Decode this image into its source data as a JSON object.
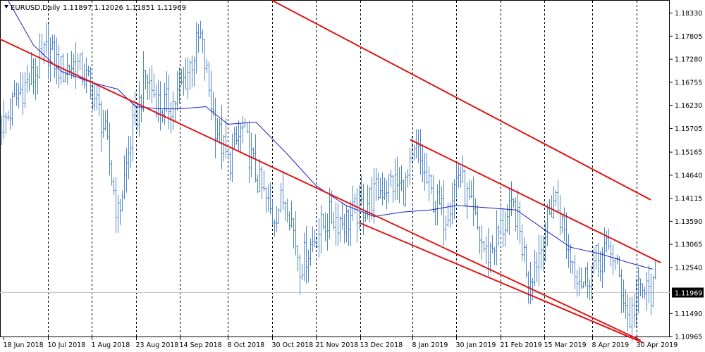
{
  "header": {
    "symbol": "EURUSD,Daily",
    "ohlc": "1.11897 1.12026 1.11851 1.11969"
  },
  "current_price_label": "1.11969",
  "colors": {
    "bars": "#4f86c6",
    "moving_average": "#1c1cc8",
    "trendlines": "#e01515",
    "grid": "#000000",
    "price_line": "#c8c8c8",
    "price_label_bg": "#000000"
  },
  "chart_data": {
    "type": "candlestick",
    "series_style": "bar",
    "ylim": [
      1.1096,
      1.1862
    ],
    "y_ticks": [
      1.1833,
      1.17805,
      1.1728,
      1.16755,
      1.1623,
      1.15705,
      1.15165,
      1.1464,
      1.14115,
      1.1359,
      1.13065,
      1.1254,
      1.1149,
      1.10965
    ],
    "x_ticks": [
      {
        "date": "2018-06-18",
        "label": "18 Jun 2018"
      },
      {
        "date": "2018-07-10",
        "label": "10 Jul 2018"
      },
      {
        "date": "2018-08-01",
        "label": "1 Aug 2018"
      },
      {
        "date": "2018-08-23",
        "label": "23 Aug 2018"
      },
      {
        "date": "2018-09-14",
        "label": "14 Sep 2018"
      },
      {
        "date": "2018-10-08",
        "label": "8 Oct 2018"
      },
      {
        "date": "2018-10-30",
        "label": "30 Oct 2018"
      },
      {
        "date": "2018-11-21",
        "label": "21 Nov 2018"
      },
      {
        "date": "2018-12-13",
        "label": "13 Dec 2018"
      },
      {
        "date": "2019-01-08",
        "label": "8 Jan 2019"
      },
      {
        "date": "2019-01-30",
        "label": "30 Jan 2019"
      },
      {
        "date": "2019-02-21",
        "label": "21 Feb 2019"
      },
      {
        "date": "2019-03-15",
        "label": "15 Mar 2019"
      },
      {
        "date": "2019-04-08",
        "label": "8 Apr 2019"
      },
      {
        "date": "2019-04-30",
        "label": "30 Apr 2019"
      }
    ],
    "vertical_gridlines": [
      "2018-07-10",
      "2018-08-01",
      "2018-08-23",
      "2018-09-14",
      "2018-10-08",
      "2018-10-30",
      "2018-11-21",
      "2018-12-13",
      "2019-01-08",
      "2019-01-30",
      "2019-02-21",
      "2019-03-15",
      "2019-04-08",
      "2019-04-30"
    ],
    "price_path": [
      {
        "date": "2018-06-11",
        "price": 1.1615
      },
      {
        "date": "2018-06-18",
        "price": 1.158
      },
      {
        "date": "2018-06-26",
        "price": 1.1655
      },
      {
        "date": "2018-07-03",
        "price": 1.169
      },
      {
        "date": "2018-07-10",
        "price": 1.175
      },
      {
        "date": "2018-07-17",
        "price": 1.17
      },
      {
        "date": "2018-07-24",
        "price": 1.172
      },
      {
        "date": "2018-08-01",
        "price": 1.166
      },
      {
        "date": "2018-08-07",
        "price": 1.157
      },
      {
        "date": "2018-08-14",
        "price": 1.137
      },
      {
        "date": "2018-08-21",
        "price": 1.156
      },
      {
        "date": "2018-08-28",
        "price": 1.169
      },
      {
        "date": "2018-09-04",
        "price": 1.162
      },
      {
        "date": "2018-09-11",
        "price": 1.163
      },
      {
        "date": "2018-09-17",
        "price": 1.169
      },
      {
        "date": "2018-09-24",
        "price": 1.178
      },
      {
        "date": "2018-10-01",
        "price": 1.159
      },
      {
        "date": "2018-10-08",
        "price": 1.149
      },
      {
        "date": "2018-10-15",
        "price": 1.157
      },
      {
        "date": "2018-10-22",
        "price": 1.146
      },
      {
        "date": "2018-10-30",
        "price": 1.137
      },
      {
        "date": "2018-11-06",
        "price": 1.142
      },
      {
        "date": "2018-11-13",
        "price": 1.126
      },
      {
        "date": "2018-11-21",
        "price": 1.133
      },
      {
        "date": "2018-11-28",
        "price": 1.137
      },
      {
        "date": "2018-12-06",
        "price": 1.136
      },
      {
        "date": "2018-12-13",
        "price": 1.139
      },
      {
        "date": "2018-12-20",
        "price": 1.142
      },
      {
        "date": "2018-12-28",
        "price": 1.145
      },
      {
        "date": "2019-01-04",
        "price": 1.143
      },
      {
        "date": "2019-01-10",
        "price": 1.152
      },
      {
        "date": "2019-01-17",
        "price": 1.142
      },
      {
        "date": "2019-01-24",
        "price": 1.137
      },
      {
        "date": "2019-01-31",
        "price": 1.147
      },
      {
        "date": "2019-02-07",
        "price": 1.137
      },
      {
        "date": "2019-02-14",
        "price": 1.128
      },
      {
        "date": "2019-02-21",
        "price": 1.134
      },
      {
        "date": "2019-02-28",
        "price": 1.139
      },
      {
        "date": "2019-03-07",
        "price": 1.123
      },
      {
        "date": "2019-03-14",
        "price": 1.131
      },
      {
        "date": "2019-03-20",
        "price": 1.142
      },
      {
        "date": "2019-03-27",
        "price": 1.129
      },
      {
        "date": "2019-04-03",
        "price": 1.122
      },
      {
        "date": "2019-04-10",
        "price": 1.127
      },
      {
        "date": "2019-04-17",
        "price": 1.13
      },
      {
        "date": "2019-04-24",
        "price": 1.118
      },
      {
        "date": "2019-04-26",
        "price": 1.113
      },
      {
        "date": "2019-05-01",
        "price": 1.12
      },
      {
        "date": "2019-05-08",
        "price": 1.1197
      }
    ],
    "moving_average": [
      {
        "date": "2018-06-18",
        "price": 1.188
      },
      {
        "date": "2018-07-03",
        "price": 1.176
      },
      {
        "date": "2018-07-17",
        "price": 1.17
      },
      {
        "date": "2018-08-01",
        "price": 1.1675
      },
      {
        "date": "2018-08-14",
        "price": 1.166
      },
      {
        "date": "2018-08-23",
        "price": 1.162
      },
      {
        "date": "2018-09-04",
        "price": 1.1615
      },
      {
        "date": "2018-09-14",
        "price": 1.1615
      },
      {
        "date": "2018-09-27",
        "price": 1.162
      },
      {
        "date": "2018-10-08",
        "price": 1.158
      },
      {
        "date": "2018-10-22",
        "price": 1.1585
      },
      {
        "date": "2018-11-06",
        "price": 1.1515
      },
      {
        "date": "2018-11-21",
        "price": 1.144
      },
      {
        "date": "2018-12-06",
        "price": 1.1395
      },
      {
        "date": "2018-12-20",
        "price": 1.137
      },
      {
        "date": "2019-01-03",
        "price": 1.138
      },
      {
        "date": "2019-01-17",
        "price": 1.1385
      },
      {
        "date": "2019-01-30",
        "price": 1.1395
      },
      {
        "date": "2019-02-14",
        "price": 1.139
      },
      {
        "date": "2019-03-01",
        "price": 1.1385
      },
      {
        "date": "2019-03-15",
        "price": 1.134
      },
      {
        "date": "2019-03-28",
        "price": 1.13
      },
      {
        "date": "2019-04-12",
        "price": 1.1285
      },
      {
        "date": "2019-04-26",
        "price": 1.1265
      },
      {
        "date": "2019-05-08",
        "price": 1.125
      }
    ],
    "trendlines": [
      {
        "name": "long-falling-line",
        "start": {
          "date": "2018-06-11",
          "price": 1.1785
        },
        "end": {
          "date": "2019-05-02",
          "price": 1.1088
        }
      },
      {
        "name": "channel-upper",
        "start": {
          "date": "2019-01-07",
          "price": 1.1545
        },
        "end": {
          "date": "2019-05-12",
          "price": 1.1265
        }
      },
      {
        "name": "channel-lower",
        "start": {
          "date": "2018-12-13",
          "price": 1.1355
        },
        "end": {
          "date": "2019-05-03",
          "price": 1.1083
        }
      },
      {
        "name": "long-term-average",
        "start": {
          "date": "2018-10-30",
          "price": 1.1862
        },
        "end": {
          "date": "2019-05-07",
          "price": 1.1408
        }
      }
    ]
  }
}
